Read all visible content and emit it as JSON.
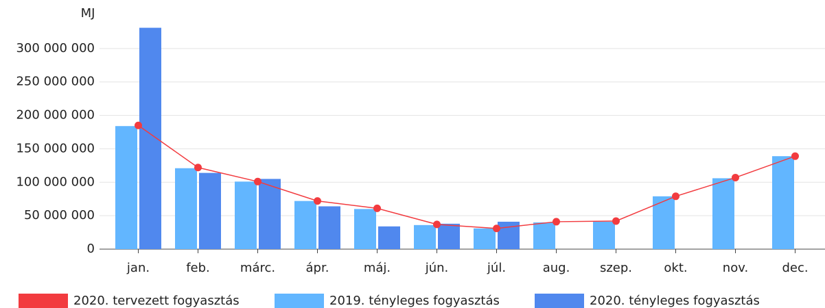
{
  "chart_data": {
    "type": "bar-line",
    "y_label": "MJ",
    "categories": [
      "jan.",
      "feb.",
      "márc.",
      "ápr.",
      "máj.",
      "jún.",
      "júl.",
      "aug.",
      "szep.",
      "okt.",
      "nov.",
      "dec."
    ],
    "series": [
      {
        "name": "2020. tervezett fogyasztás",
        "color": "#f23b3f",
        "kind": "line",
        "values": [
          185000000,
          122000000,
          101000000,
          72000000,
          61000000,
          37000000,
          31000000,
          41000000,
          42000000,
          79000000,
          107000000,
          139000000
        ]
      },
      {
        "name": "2019. tényleges fogyasztás",
        "color": "#62b6ff",
        "kind": "bar",
        "values": [
          184000000,
          121000000,
          101000000,
          72000000,
          60000000,
          36000000,
          31000000,
          40000000,
          41000000,
          79000000,
          106000000,
          139000000
        ]
      },
      {
        "name": "2020. tényleges fogyasztás",
        "color": "#5088ee",
        "kind": "bar",
        "values": [
          331000000,
          114000000,
          105000000,
          64000000,
          34000000,
          38000000,
          41000000,
          null,
          null,
          null,
          null,
          null
        ]
      }
    ],
    "ylim": [
      0,
      350000000
    ],
    "yticks": [
      0,
      {
        "value": 50000000,
        "label": "50 000 000"
      },
      {
        "value": 100000000,
        "label": "100 000 000"
      },
      {
        "value": 150000000,
        "label": "150 000 000"
      },
      {
        "value": 200000000,
        "label": "200 000 000"
      },
      {
        "value": 250000000,
        "label": "250 000 000"
      },
      {
        "value": 300000000,
        "label": "300 000 000"
      }
    ],
    "grid": true,
    "legend": "bottom"
  }
}
